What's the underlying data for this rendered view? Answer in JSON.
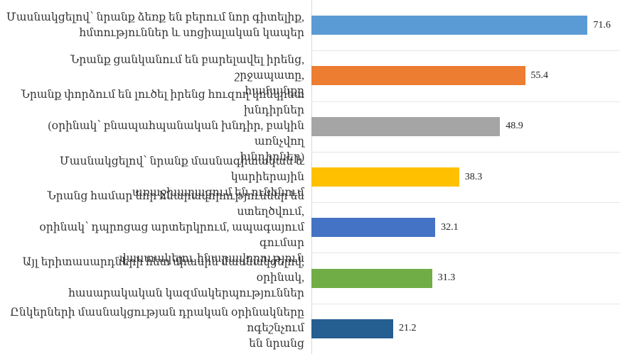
{
  "chart_data": {
    "type": "bar",
    "orientation": "horizontal",
    "categories": [
      "Մասնակցելով՝ նրանք ձեռք են բերում  նոր գիտելիք,\nհմտություններ և սոցիալական կապեր",
      "Նրանք ցանկանում են բարելավել իրենց, շրջապատը,\nհամայնքը",
      "Նրանք փորձում են լուծել իրենց հուզող կոնկրետ խնդիրներ\n(օրինակ՝ բնապահպանական խնդիր, բակին առնչվող\nխնդիրներ)",
      "Մասնակցելով՝ նրանք մասնագիտական և կարիերային\nառաջխաղացում են ունենում",
      "Նրանց համար նոր հնարավորություններ են ստեղծվում,\nօրինակ՝ դպրոցաց  արտերկրում, ապագայում գումար\nվաստակելու հնարավորություն",
      "Այլ երիտասարդների հետ միասին մասնակցելով, օրինակ,\nհասարակական կազմակերպություններ",
      "Ընկերների մասնակցության դրական օրինակները ոգեշնչում\nեն նրանց"
    ],
    "values": [
      71.6,
      55.4,
      48.9,
      38.3,
      32.1,
      31.3,
      21.2
    ],
    "value_labels": [
      "71.6",
      "55.4",
      "48.9",
      "38.3",
      "32.1",
      "31.3",
      "21.2"
    ],
    "colors": [
      "#5B9BD5",
      "#ED7D31",
      "#A5A5A5",
      "#FFC000",
      "#4472C4",
      "#70AD47",
      "#255E91"
    ],
    "xlim": [
      0,
      80
    ],
    "grid": true,
    "title": "",
    "xlabel": "",
    "ylabel": ""
  }
}
